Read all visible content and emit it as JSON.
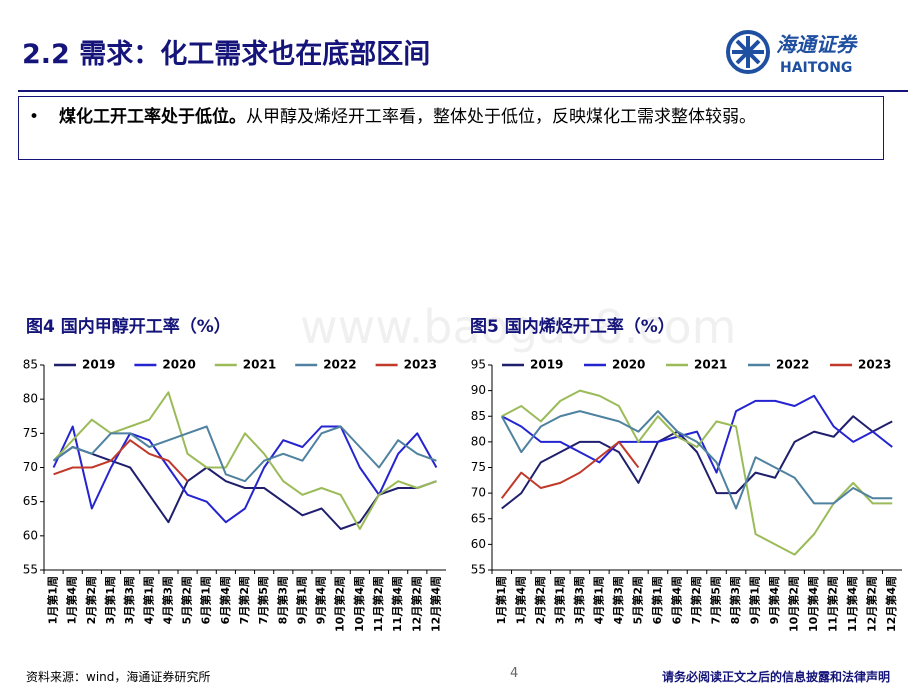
{
  "header": {
    "title": "2.2 需求：化工需求也在底部区间",
    "logo_cn": "海通证券",
    "logo_en": "HAITONG"
  },
  "bullet": {
    "bold": "煤化工开工率处于低位。",
    "text": "从甲醇及烯烃开工率看，整体处于低位，反映煤化工需求整体较弱。"
  },
  "watermark": "www.baogao8.com",
  "footer": {
    "source": "资料来源：wind，海通证券研究所",
    "page": "4",
    "disclaimer": "请务必阅读正文之后的信息披露和法律声明"
  },
  "chart_data": [
    {
      "type": "line",
      "title": "图4 国内甲醇开工率（%）",
      "categories": [
        "1月第1周",
        "1月第4周",
        "2月第2周",
        "3月第1周",
        "3月第3周",
        "4月第1周",
        "4月第3周",
        "5月第2周",
        "6月第1周",
        "6月第4周",
        "7月第2周",
        "7月第5周",
        "8月第3周",
        "9月第1周",
        "9月第4周",
        "10月第2周",
        "10月第4周",
        "11月第2周",
        "11月第4周",
        "12月第2周",
        "12月第4周"
      ],
      "ylim": [
        55,
        85
      ],
      "yticks": [
        55,
        60,
        65,
        70,
        75,
        80,
        85
      ],
      "grid": false,
      "legend": "top",
      "series": [
        {
          "name": "2019",
          "color": "#1f1f6e",
          "values": [
            71,
            73,
            72,
            71,
            70,
            66,
            62,
            68,
            70,
            68,
            67,
            67,
            65,
            63,
            64,
            61,
            62,
            66,
            67,
            67,
            68
          ]
        },
        {
          "name": "2020",
          "color": "#2424d0",
          "values": [
            70,
            76,
            64,
            70,
            75,
            74,
            70,
            66,
            65,
            62,
            64,
            70,
            74,
            73,
            76,
            76,
            70,
            66,
            72,
            75,
            70
          ]
        },
        {
          "name": "2021",
          "color": "#9bbb59",
          "values": [
            71,
            74,
            77,
            75,
            76,
            77,
            81,
            72,
            70,
            70,
            75,
            72,
            68,
            66,
            67,
            66,
            61,
            66,
            68,
            67,
            68
          ]
        },
        {
          "name": "2022",
          "color": "#4f81a0",
          "values": [
            71,
            73,
            72,
            75,
            75,
            73,
            74,
            75,
            76,
            69,
            68,
            71,
            72,
            71,
            75,
            76,
            73,
            70,
            74,
            72,
            71
          ]
        },
        {
          "name": "2023",
          "color": "#c0392b",
          "values": [
            69,
            70,
            70,
            71,
            74,
            72,
            71,
            68,
            null,
            null,
            null,
            null,
            null,
            null,
            null,
            null,
            null,
            null,
            null,
            null,
            null
          ]
        }
      ]
    },
    {
      "type": "line",
      "title": "图5 国内烯烃开工率（%）",
      "categories": [
        "1月第1周",
        "1月第4周",
        "2月第2周",
        "3月第1周",
        "3月第3周",
        "4月第1周",
        "4月第3周",
        "5月第2周",
        "6月第1周",
        "6月第4周",
        "7月第2周",
        "7月第5周",
        "8月第3周",
        "9月第1周",
        "9月第4周",
        "10月第2周",
        "10月第4周",
        "11月第2周",
        "11月第4周",
        "12月第2周",
        "12月第4周"
      ],
      "ylim": [
        55,
        95
      ],
      "yticks": [
        55,
        60,
        65,
        70,
        75,
        80,
        85,
        90,
        95
      ],
      "grid": false,
      "legend": "top",
      "series": [
        {
          "name": "2019",
          "color": "#1f1f6e",
          "values": [
            67,
            70,
            76,
            78,
            80,
            80,
            78,
            72,
            80,
            82,
            78,
            70,
            70,
            74,
            73,
            80,
            82,
            81,
            85,
            82,
            84
          ]
        },
        {
          "name": "2020",
          "color": "#2424d0",
          "values": [
            85,
            83,
            80,
            80,
            78,
            76,
            80,
            80,
            80,
            81,
            82,
            74,
            86,
            88,
            88,
            87,
            89,
            83,
            80,
            82,
            79
          ]
        },
        {
          "name": "2021",
          "color": "#9bbb59",
          "values": [
            85,
            87,
            84,
            88,
            90,
            89,
            87,
            80,
            85,
            81,
            79,
            84,
            83,
            62,
            60,
            58,
            62,
            68,
            72,
            68,
            68
          ]
        },
        {
          "name": "2022",
          "color": "#4f81a0",
          "values": [
            85,
            78,
            83,
            85,
            86,
            85,
            84,
            82,
            86,
            82,
            80,
            76,
            67,
            77,
            75,
            73,
            68,
            68,
            71,
            69,
            69
          ]
        },
        {
          "name": "2023",
          "color": "#c0392b",
          "values": [
            69,
            74,
            71,
            72,
            74,
            77,
            80,
            75,
            null,
            null,
            null,
            null,
            null,
            null,
            null,
            null,
            null,
            null,
            null,
            null,
            null
          ]
        }
      ]
    }
  ]
}
